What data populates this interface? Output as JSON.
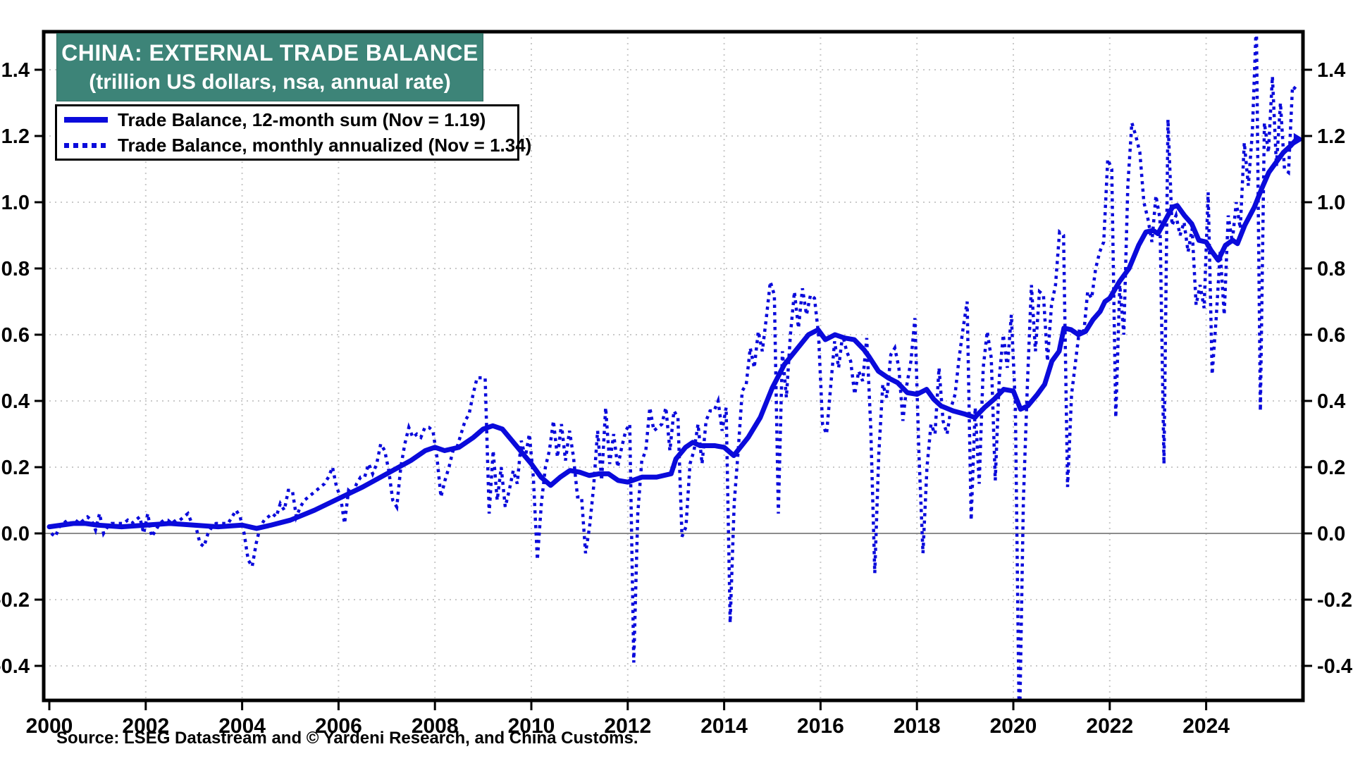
{
  "title": {
    "line1": "CHINA: EXTERNAL TRADE BALANCE",
    "line2": "(trillion US dollars, nsa, annual rate)"
  },
  "legend": {
    "items": [
      {
        "label": "Trade Balance, 12-month sum (Nov = 1.19)",
        "style": "solid"
      },
      {
        "label": "Trade Balance, monthly annualized (Nov = 1.34)",
        "style": "dotted"
      }
    ]
  },
  "source": "Source: LSEG Datastream and © Yardeni Research, and China Customs.",
  "colors": {
    "series_blue": "#0a0adb",
    "title_box_teal": "#3d8478",
    "grid_gray": "#c9c9c9",
    "zero_line_gray": "#8c8c8c",
    "frame_black": "#000000",
    "background": "#ffffff"
  },
  "chart_data": {
    "type": "line",
    "title": "CHINA: EXTERNAL TRADE BALANCE (trillion US dollars, nsa, annual rate)",
    "xlabel": "",
    "ylabel": "trillion US dollars",
    "x_range": [
      1999.88,
      2026.0
    ],
    "y_range": [
      -0.505,
      1.515
    ],
    "y_ticks": [
      -0.4,
      -0.2,
      0.0,
      0.2,
      0.4,
      0.6,
      0.8,
      1.0,
      1.2,
      1.4
    ],
    "x_tick_years": [
      2000,
      2002,
      2004,
      2006,
      2008,
      2010,
      2012,
      2014,
      2016,
      2018,
      2020,
      2022,
      2024
    ],
    "x_gridline_years": [
      2002,
      2004,
      2006,
      2008,
      2010,
      2012,
      2014,
      2016,
      2018,
      2020,
      2022,
      2024
    ],
    "grid": true,
    "legend_position": "top-left",
    "note": "Monthly-annualized spikes of Feb 2020 (below -0.5) and Jan 2025 (above 1.5) extend past the plotted y-range and are clipped by the frame.",
    "series": [
      {
        "name": "Trade Balance, 12-month sum",
        "latest": "Nov = 1.19",
        "style": "solid",
        "points": [
          [
            2000.0,
            0.02
          ],
          [
            2000.25,
            0.025
          ],
          [
            2000.5,
            0.03
          ],
          [
            2000.75,
            0.03
          ],
          [
            2001.0,
            0.025
          ],
          [
            2001.5,
            0.02
          ],
          [
            2002.0,
            0.025
          ],
          [
            2002.5,
            0.03
          ],
          [
            2003.0,
            0.025
          ],
          [
            2003.5,
            0.02
          ],
          [
            2004.0,
            0.025
          ],
          [
            2004.3,
            0.015
          ],
          [
            2004.6,
            0.025
          ],
          [
            2005.0,
            0.04
          ],
          [
            2005.5,
            0.07
          ],
          [
            2006.0,
            0.105
          ],
          [
            2006.5,
            0.14
          ],
          [
            2007.0,
            0.18
          ],
          [
            2007.5,
            0.22
          ],
          [
            2007.8,
            0.25
          ],
          [
            2008.0,
            0.26
          ],
          [
            2008.2,
            0.25
          ],
          [
            2008.5,
            0.26
          ],
          [
            2008.8,
            0.29
          ],
          [
            2009.0,
            0.315
          ],
          [
            2009.2,
            0.325
          ],
          [
            2009.4,
            0.315
          ],
          [
            2009.6,
            0.28
          ],
          [
            2009.8,
            0.245
          ],
          [
            2010.0,
            0.21
          ],
          [
            2010.2,
            0.17
          ],
          [
            2010.4,
            0.145
          ],
          [
            2010.6,
            0.17
          ],
          [
            2010.8,
            0.19
          ],
          [
            2011.0,
            0.185
          ],
          [
            2011.2,
            0.175
          ],
          [
            2011.4,
            0.18
          ],
          [
            2011.6,
            0.18
          ],
          [
            2011.8,
            0.16
          ],
          [
            2012.0,
            0.155
          ],
          [
            2012.3,
            0.17
          ],
          [
            2012.6,
            0.17
          ],
          [
            2012.9,
            0.18
          ],
          [
            2013.0,
            0.225
          ],
          [
            2013.2,
            0.26
          ],
          [
            2013.35,
            0.275
          ],
          [
            2013.5,
            0.265
          ],
          [
            2013.8,
            0.265
          ],
          [
            2014.0,
            0.26
          ],
          [
            2014.2,
            0.235
          ],
          [
            2014.5,
            0.29
          ],
          [
            2014.75,
            0.35
          ],
          [
            2015.0,
            0.44
          ],
          [
            2015.25,
            0.51
          ],
          [
            2015.5,
            0.555
          ],
          [
            2015.75,
            0.6
          ],
          [
            2015.95,
            0.615
          ],
          [
            2016.1,
            0.585
          ],
          [
            2016.3,
            0.6
          ],
          [
            2016.5,
            0.59
          ],
          [
            2016.7,
            0.585
          ],
          [
            2016.9,
            0.555
          ],
          [
            2017.0,
            0.535
          ],
          [
            2017.2,
            0.49
          ],
          [
            2017.4,
            0.47
          ],
          [
            2017.6,
            0.455
          ],
          [
            2017.8,
            0.425
          ],
          [
            2018.0,
            0.42
          ],
          [
            2018.2,
            0.435
          ],
          [
            2018.35,
            0.405
          ],
          [
            2018.5,
            0.385
          ],
          [
            2018.75,
            0.37
          ],
          [
            2019.0,
            0.36
          ],
          [
            2019.2,
            0.35
          ],
          [
            2019.4,
            0.38
          ],
          [
            2019.6,
            0.405
          ],
          [
            2019.8,
            0.435
          ],
          [
            2020.0,
            0.43
          ],
          [
            2020.15,
            0.375
          ],
          [
            2020.3,
            0.385
          ],
          [
            2020.5,
            0.42
          ],
          [
            2020.65,
            0.45
          ],
          [
            2020.8,
            0.52
          ],
          [
            2020.95,
            0.55
          ],
          [
            2021.05,
            0.62
          ],
          [
            2021.2,
            0.615
          ],
          [
            2021.35,
            0.6
          ],
          [
            2021.5,
            0.61
          ],
          [
            2021.65,
            0.645
          ],
          [
            2021.8,
            0.67
          ],
          [
            2021.9,
            0.7
          ],
          [
            2022.0,
            0.71
          ],
          [
            2022.2,
            0.76
          ],
          [
            2022.4,
            0.8
          ],
          [
            2022.6,
            0.87
          ],
          [
            2022.75,
            0.91
          ],
          [
            2022.9,
            0.915
          ],
          [
            2023.0,
            0.905
          ],
          [
            2023.15,
            0.945
          ],
          [
            2023.3,
            0.985
          ],
          [
            2023.4,
            0.99
          ],
          [
            2023.55,
            0.96
          ],
          [
            2023.7,
            0.935
          ],
          [
            2023.85,
            0.885
          ],
          [
            2024.0,
            0.88
          ],
          [
            2024.1,
            0.855
          ],
          [
            2024.25,
            0.825
          ],
          [
            2024.4,
            0.87
          ],
          [
            2024.55,
            0.885
          ],
          [
            2024.65,
            0.875
          ],
          [
            2024.8,
            0.93
          ],
          [
            2025.0,
            0.985
          ],
          [
            2025.15,
            1.04
          ],
          [
            2025.3,
            1.09
          ],
          [
            2025.45,
            1.12
          ],
          [
            2025.6,
            1.15
          ],
          [
            2025.75,
            1.17
          ],
          [
            2025.875,
            1.19
          ]
        ]
      },
      {
        "name": "Trade Balance, monthly annualized",
        "latest": "Nov = 1.34",
        "style": "dotted",
        "monthly": {
          "2000": [
            0.0,
            -0.01,
            0.02,
            0.03,
            0.04,
            0.03,
            0.04,
            0.03,
            0.04,
            0.05,
            0.04,
            0.01
          ],
          "2001": [
            0.06,
            0.0,
            0.02,
            0.03,
            0.03,
            0.03,
            0.03,
            0.04,
            0.03,
            0.04,
            0.05,
            0.0
          ],
          "2002": [
            0.06,
            -0.01,
            0.01,
            0.03,
            0.04,
            0.04,
            0.03,
            0.04,
            0.04,
            0.05,
            0.06,
            0.03
          ],
          "2003": [
            0.02,
            -0.03,
            -0.04,
            0.0,
            0.02,
            0.03,
            0.03,
            0.03,
            0.03,
            0.05,
            0.07,
            0.05
          ],
          "2004": [
            0.0,
            -0.08,
            -0.1,
            -0.03,
            0.02,
            0.04,
            0.05,
            0.06,
            0.05,
            0.09,
            0.07,
            0.13
          ],
          "2005": [
            0.13,
            0.05,
            0.08,
            0.1,
            0.11,
            0.12,
            0.13,
            0.14,
            0.15,
            0.17,
            0.2,
            0.14
          ],
          "2006": [
            0.11,
            0.03,
            0.13,
            0.12,
            0.15,
            0.17,
            0.17,
            0.21,
            0.18,
            0.21,
            0.27,
            0.25
          ],
          "2007": [
            0.19,
            0.1,
            0.08,
            0.2,
            0.27,
            0.32,
            0.29,
            0.3,
            0.29,
            0.32,
            0.32,
            0.31
          ],
          "2008": [
            0.23,
            0.11,
            0.16,
            0.2,
            0.25,
            0.26,
            0.3,
            0.34,
            0.36,
            0.42,
            0.47,
            0.47
          ],
          "2009": [
            0.47,
            0.06,
            0.25,
            0.1,
            0.2,
            0.08,
            0.13,
            0.19,
            0.15,
            0.28,
            0.23,
            0.3
          ],
          "2010": [
            0.17,
            -0.08,
            0.09,
            0.2,
            0.25,
            0.34,
            0.23,
            0.33,
            0.22,
            0.31,
            0.23,
            0.11
          ],
          "2011": [
            0.11,
            -0.06,
            0.02,
            0.14,
            0.31,
            0.16,
            0.38,
            0.21,
            0.3,
            0.2,
            0.26,
            0.31
          ],
          "2012": [
            0.33,
            -0.39,
            0.06,
            0.22,
            0.25,
            0.38,
            0.31,
            0.32,
            0.33,
            0.38,
            0.25,
            0.37
          ],
          "2013": [
            0.35,
            -0.01,
            0.02,
            0.21,
            0.25,
            0.33,
            0.21,
            0.34,
            0.37,
            0.37,
            0.4,
            0.31
          ],
          "2014": [
            0.38,
            -0.27,
            0.09,
            0.25,
            0.43,
            0.45,
            0.56,
            0.5,
            0.61,
            0.55,
            0.65,
            0.76
          ],
          "2015": [
            0.72,
            0.06,
            0.55,
            0.41,
            0.6,
            0.73,
            0.62,
            0.74,
            0.66,
            0.72,
            0.71,
            0.6
          ],
          "2016": [
            0.33,
            0.3,
            0.44,
            0.58,
            0.5,
            0.6,
            0.55,
            0.52,
            0.42,
            0.49,
            0.46,
            0.59
          ],
          "2017": [
            0.32,
            -0.12,
            0.24,
            0.45,
            0.41,
            0.54,
            0.56,
            0.5,
            0.34,
            0.45,
            0.52,
            0.65
          ],
          "2018": [
            0.24,
            -0.06,
            0.2,
            0.33,
            0.3,
            0.5,
            0.34,
            0.3,
            0.38,
            0.42,
            0.53,
            0.62
          ],
          "2019": [
            0.7,
            0.04,
            0.38,
            0.15,
            0.5,
            0.61,
            0.53,
            0.16,
            0.47,
            0.6,
            0.5,
            0.66
          ],
          "2020": [
            0.39,
            -0.62,
            0.1,
            0.45,
            0.75,
            0.55,
            0.73,
            0.72,
            0.52,
            0.69,
            0.75,
            0.91
          ],
          "2021": [
            0.9,
            0.14,
            0.42,
            0.52,
            0.62,
            0.6,
            0.73,
            0.71,
            0.8,
            0.85,
            0.88,
            1.13
          ],
          "2022": [
            1.1,
            0.35,
            0.75,
            0.6,
            1.05,
            1.24,
            1.2,
            1.15,
            1.0,
            0.95,
            0.88,
            1.02
          ],
          "2023": [
            0.95,
            0.21,
            1.25,
            0.93,
            0.96,
            0.9,
            0.94,
            0.85,
            0.92,
            0.69,
            0.75,
            0.68
          ],
          "2024": [
            1.03,
            0.48,
            0.65,
            0.85,
            0.66,
            0.96,
            0.88,
            1.0,
            0.92,
            1.18,
            1.05,
            1.21
          ],
          "2025": [
            1.55,
            0.37,
            1.24,
            1.15,
            1.38,
            1.11,
            1.3,
            1.1,
            1.09,
            1.35,
            1.34
          ]
        }
      }
    ]
  }
}
